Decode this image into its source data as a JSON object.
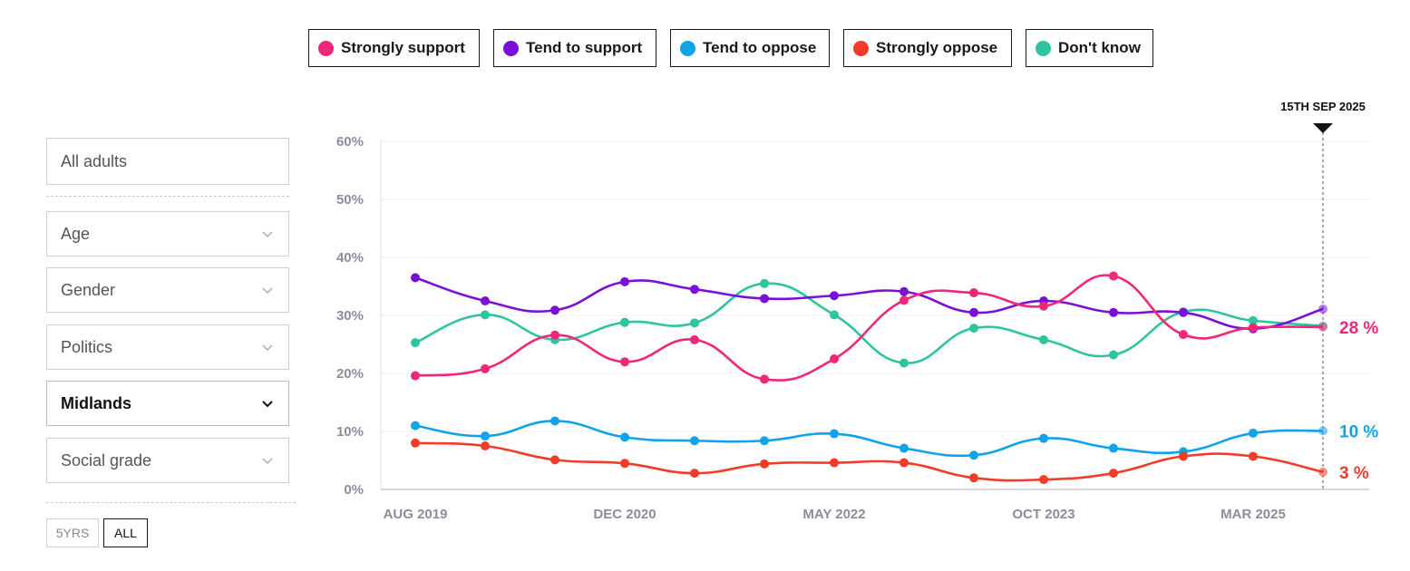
{
  "legend": [
    {
      "label": "Strongly support",
      "color": "#f0267a"
    },
    {
      "label": "Tend to support",
      "color": "#7a10d8"
    },
    {
      "label": "Tend to oppose",
      "color": "#11a3ea"
    },
    {
      "label": "Strongly oppose",
      "color": "#f23c2a"
    },
    {
      "label": "Don't know",
      "color": "#2ec4a0"
    }
  ],
  "filters": {
    "audience": "All adults",
    "age": "Age",
    "gender": "Gender",
    "politics": "Politics",
    "region": "Midlands",
    "social_grade": "Social grade"
  },
  "range": {
    "five_years": "5YRS",
    "all": "ALL"
  },
  "chart_data": {
    "type": "line",
    "title": "",
    "xlabel": "",
    "ylabel": "",
    "ylim": [
      0,
      60
    ],
    "y_ticks": [
      "0%",
      "10%",
      "20%",
      "30%",
      "40%",
      "50%",
      "60%"
    ],
    "x_tick_labels": [
      {
        "label": "AUG 2019",
        "index": 0
      },
      {
        "label": "DEC 2020",
        "index": 3
      },
      {
        "label": "MAY 2022",
        "index": 6
      },
      {
        "label": "OCT 2023",
        "index": 9
      },
      {
        "label": "MAR 2025",
        "index": 12
      }
    ],
    "marker": {
      "label": "15TH SEP 2025",
      "index": 13
    },
    "x": [
      0,
      1,
      2,
      3,
      4,
      5,
      6,
      7,
      8,
      9,
      10,
      11,
      12,
      13
    ],
    "series": [
      {
        "name": "Don't know",
        "color": "#2ec4a0",
        "values": [
          25.3,
          30.1,
          25.8,
          28.8,
          28.7,
          35.5,
          30.1,
          21.8,
          27.8,
          25.8,
          23.2,
          30.6,
          29.1,
          28.2
        ]
      },
      {
        "name": "Tend to support",
        "color": "#7a10d8",
        "values": [
          36.5,
          32.5,
          30.9,
          35.8,
          34.5,
          32.9,
          33.4,
          34.1,
          30.5,
          32.5,
          30.5,
          30.5,
          27.7,
          31.1
        ]
      },
      {
        "name": "Strongly support",
        "color": "#f0267a",
        "values": [
          19.6,
          20.8,
          26.6,
          22.0,
          25.8,
          19.0,
          22.5,
          32.6,
          33.9,
          31.6,
          36.8,
          26.7,
          27.9,
          28.0
        ]
      },
      {
        "name": "Tend to oppose",
        "color": "#11a3ea",
        "values": [
          11.0,
          9.2,
          11.8,
          9.0,
          8.4,
          8.4,
          9.6,
          7.1,
          5.9,
          8.8,
          7.1,
          6.5,
          9.7,
          10.1
        ]
      },
      {
        "name": "Strongly oppose",
        "color": "#f23c2a",
        "values": [
          8.0,
          7.5,
          5.1,
          4.5,
          2.8,
          4.4,
          4.6,
          4.6,
          2.0,
          1.7,
          2.8,
          5.7,
          5.7,
          3.0
        ]
      }
    ],
    "end_labels": [
      {
        "text": "28 %",
        "color": "#f0267a",
        "value": 28.0
      },
      {
        "text": "10 %",
        "color": "#11a3ea",
        "value": 10.1
      },
      {
        "text": "3 %",
        "color": "#f23c2a",
        "value": 3.0
      }
    ],
    "grid": true
  }
}
